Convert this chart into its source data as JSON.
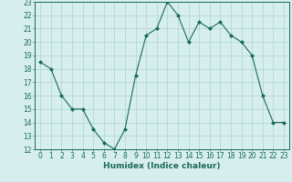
{
  "x": [
    0,
    1,
    2,
    3,
    4,
    5,
    6,
    7,
    8,
    9,
    10,
    11,
    12,
    13,
    14,
    15,
    16,
    17,
    18,
    19,
    20,
    21,
    22,
    23
  ],
  "y": [
    18.5,
    18.0,
    16.0,
    15.0,
    15.0,
    13.5,
    12.5,
    12.0,
    13.5,
    17.5,
    20.5,
    21.0,
    23.0,
    22.0,
    20.0,
    21.5,
    21.0,
    21.5,
    20.5,
    20.0,
    19.0,
    16.0,
    14.0,
    14.0
  ],
  "line_color": "#1a6b5a",
  "marker_color": "#1a6b5a",
  "bg_color": "#d6eeee",
  "grid_color": "#afd4d4",
  "xlabel": "Humidex (Indice chaleur)",
  "xlim": [
    -0.5,
    23.5
  ],
  "ylim": [
    12,
    23
  ],
  "yticks": [
    12,
    13,
    14,
    15,
    16,
    17,
    18,
    19,
    20,
    21,
    22,
    23
  ],
  "xticks": [
    0,
    1,
    2,
    3,
    4,
    5,
    6,
    7,
    8,
    9,
    10,
    11,
    12,
    13,
    14,
    15,
    16,
    17,
    18,
    19,
    20,
    21,
    22,
    23
  ],
  "label_fontsize": 6.5,
  "tick_fontsize": 5.5
}
